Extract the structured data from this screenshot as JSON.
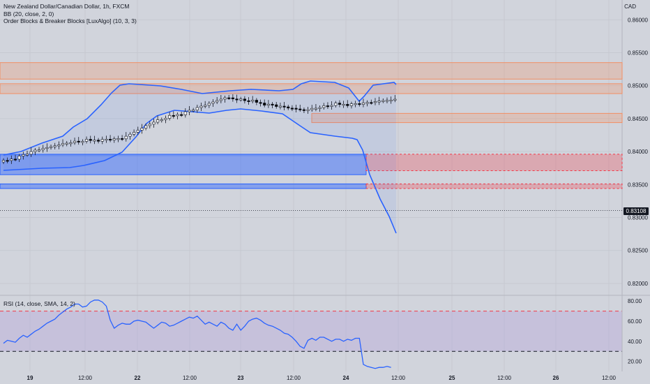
{
  "header": {
    "symbol_title": "New Zealand Dollar/Canadian Dollar, 1h, FXCM",
    "bb_indicator": "BB (20, close, 2, 0)",
    "ob_indicator": "Order Blocks & Breaker Blocks [LuxAlgo] (10, 3, 3)",
    "currency": "CAD"
  },
  "rsi": {
    "label": "RSI (14, close, SMA, 14, 2)"
  },
  "last_price": "0.83108",
  "colors": {
    "background": "#d1d4dc",
    "bull_candle": "#ffffff",
    "bear_candle": "#000000",
    "band_line": "#2962ff",
    "bearish_block": "#f28e63",
    "bullish_block": "#2962ff",
    "breaker_red": "#f23645",
    "rsi_line": "#2962ff",
    "rsi_band": "#b39ddb"
  },
  "chart_data": [
    {
      "type": "candlestick",
      "title": "New Zealand Dollar/Canadian Dollar, 1h, FXCM",
      "y_axis_ticks": [
        "0.86000",
        "0.85500",
        "0.85000",
        "0.84500",
        "0.84000",
        "0.83500",
        "0.83000",
        "0.82500",
        "0.82000"
      ],
      "ylim": [
        0.8183,
        0.863
      ],
      "x_axis_ticks": [
        "19",
        "12:00",
        "22",
        "12:00",
        "23",
        "12:00",
        "24",
        "12:00",
        "25",
        "12:00",
        "26",
        "12:00"
      ],
      "bollinger_bands": {
        "period": 20,
        "source": "close",
        "stdev": 2,
        "offset": 0
      },
      "order_blocks": [
        {
          "kind": "bearish",
          "top": 0.8535,
          "bottom": 0.851
        },
        {
          "kind": "bearish",
          "top": 0.8503,
          "bottom": 0.8488
        },
        {
          "kind": "bearish",
          "top": 0.8458,
          "bottom": 0.8444
        },
        {
          "kind": "bullish",
          "top": 0.8396,
          "bottom": 0.8365
        },
        {
          "kind": "bullish",
          "top": 0.8351,
          "bottom": 0.8344
        },
        {
          "kind": "breaker",
          "top": 0.8396,
          "bottom": 0.8371
        },
        {
          "kind": "breaker",
          "top": 0.8351,
          "bottom": 0.8344
        }
      ],
      "last_value": 0.83108
    },
    {
      "type": "line",
      "title": "RSI (14, close, SMA, 14, 2)",
      "y_axis_ticks": [
        "80.00",
        "60.00",
        "40.00",
        "20.00"
      ],
      "ylim": [
        10,
        85
      ],
      "levels": [
        70,
        30
      ],
      "series": [
        {
          "name": "RSI",
          "values": [
            38,
            41,
            40,
            39,
            43,
            46,
            44,
            47,
            50,
            52,
            55,
            58,
            60,
            62,
            66,
            69,
            72,
            74,
            77,
            77,
            74,
            75,
            79,
            81,
            81,
            79,
            75,
            61,
            53,
            56,
            58,
            57,
            57,
            60,
            61,
            60,
            59,
            56,
            53,
            56,
            59,
            58,
            55,
            56,
            58,
            60,
            62,
            64,
            63,
            65,
            61,
            57,
            59,
            57,
            55,
            59,
            57,
            53,
            51,
            57,
            51,
            55,
            60,
            62,
            63,
            61,
            58,
            56,
            55,
            53,
            51,
            48,
            47,
            44,
            40,
            35,
            33,
            41,
            43,
            41,
            44,
            44,
            42,
            40,
            42,
            42,
            40,
            42,
            41,
            43,
            43,
            17,
            15,
            14,
            13,
            14,
            14,
            15,
            14
          ]
        }
      ]
    }
  ]
}
